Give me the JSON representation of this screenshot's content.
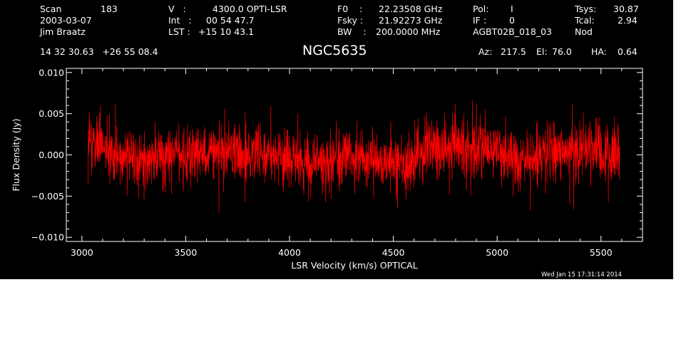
{
  "header": {
    "col1": {
      "scan_label": "Scan",
      "scan_value": "183",
      "date": "2003-03-07",
      "observer": "Jim Braatz"
    },
    "col2": {
      "v_label": "V   :",
      "v_value": "4300.0 OPTI-LSR",
      "int_label": "Int   :",
      "int_value": "00 54 47.7",
      "lst_label": "LST :",
      "lst_value": "+15 10 43.1"
    },
    "col3": {
      "f0_label": "F0    :",
      "f0_value": "22.23508 GHz",
      "fsky_label": "Fsky :",
      "fsky_value": "21.92273 GHz",
      "bw_label": "BW    :",
      "bw_value": "200.0000 MHz"
    },
    "col4": {
      "pol_label": "Pol:",
      "pol_value": "I",
      "if_label": "IF :",
      "if_value": "0",
      "project": "AGBT02B_018_03"
    },
    "col5": {
      "tsys_label": "Tsys:",
      "tsys_value": "30.87",
      "tcal_label": "Tcal:",
      "tcal_value": "2.94",
      "mode": "Nod"
    },
    "coords": "14 32 30.63   +26 55 08.4",
    "source": "NGC5635",
    "az_label": "Az:",
    "az_value": "217.5",
    "el_label": "El:",
    "el_value": "76.0",
    "ha_label": "HA:",
    "ha_value": "0.64"
  },
  "timestamp": "Wed Jan 15 17:31:14 2014",
  "colors": {
    "background": "#000000",
    "axes": "#ffffff",
    "trace": "#ff0000",
    "page": "#ffffff"
  },
  "chart_data": {
    "type": "line",
    "title": "",
    "xlabel": "LSR Velocity (km/s) OPTICAL",
    "ylabel": "Flux Density (Jy)",
    "xlim": [
      2925,
      5700
    ],
    "ylim": [
      -0.0105,
      0.0105
    ],
    "x_ticks": [
      3000,
      3500,
      4000,
      4500,
      5000,
      5500
    ],
    "x_tick_labels": [
      "3000",
      "3500",
      "4000",
      "4500",
      "5000",
      "5500"
    ],
    "y_ticks": [
      0.01,
      0.005,
      0.0,
      -0.005,
      -0.01
    ],
    "y_tick_labels": [
      "0.010",
      "0.005",
      "0.000",
      "−0.005",
      "−0.010"
    ],
    "grid": false,
    "legend": "none",
    "series": [
      {
        "x_start": 3030,
        "x_end": 5590,
        "noise_rms": 0.0018,
        "baseline": {
          "x": [
            3030,
            3100,
            3250,
            3400,
            3550,
            3700,
            3850,
            4000,
            4150,
            4300,
            4450,
            4550,
            4650,
            4800,
            4950,
            5100,
            5250,
            5400,
            5590
          ],
          "y": [
            0.0012,
            0.001,
            -0.0004,
            0.0,
            0.0002,
            0.0003,
            0.0005,
            -0.0004,
            -0.0008,
            -0.0002,
            -0.001,
            -0.0014,
            0.0006,
            0.0011,
            0.0006,
            -0.0004,
            0.0002,
            0.0004,
            0.0
          ]
        },
        "extremes": {
          "x": [
            3035,
            3085,
            3660,
            4880,
            4900,
            5160,
            5350,
            5565
          ],
          "y": [
            0.0052,
            0.0051,
            -0.0071,
            0.0067,
            0.0062,
            -0.0067,
            -0.006,
            0.0047
          ]
        }
      }
    ]
  }
}
